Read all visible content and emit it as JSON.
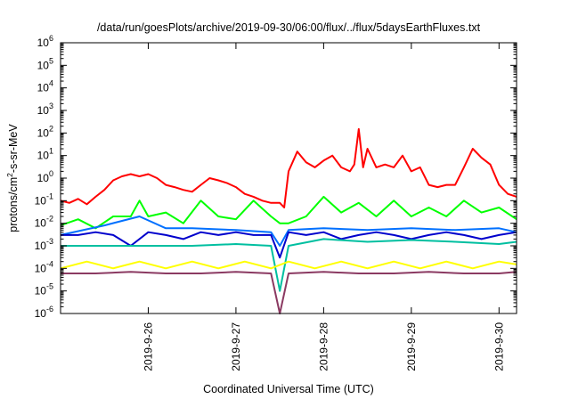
{
  "chart_data": {
    "type": "line",
    "title": "/data/run/goesPlots/archive/2019-09-30/06:00/flux/../flux/5daysEarthFluxes.txt",
    "xlabel": "Coordinated Universal Time (UTC)",
    "ylabel": {
      "prefix": "protons/cm",
      "sup": "2",
      "suffix": "-s-sr-MeV"
    },
    "x_ticks": [
      "2019-9-26",
      "2019-9-27",
      "2019-9-28",
      "2019-9-29",
      "2019-9-30"
    ],
    "x_range_days": [
      0.0,
      5.2
    ],
    "x_tick_positions_days": [
      1.0,
      2.0,
      3.0,
      4.0,
      5.0
    ],
    "y_scale": "log",
    "y_tick_base": "10",
    "y_tick_exponents": [
      "-6",
      "-5",
      "-4",
      "-3",
      "-2",
      "-1",
      "0",
      "1",
      "2",
      "3",
      "4",
      "5",
      "6"
    ],
    "ylim": [
      1e-06,
      1000000.0
    ],
    "grid": false,
    "legend": "none",
    "series": [
      {
        "color": "#ff0000",
        "points": [
          [
            0.0,
            0.1
          ],
          [
            0.1,
            0.08
          ],
          [
            0.2,
            0.12
          ],
          [
            0.3,
            0.07
          ],
          [
            0.4,
            0.15
          ],
          [
            0.5,
            0.3
          ],
          [
            0.6,
            0.8
          ],
          [
            0.7,
            1.2
          ],
          [
            0.8,
            1.5
          ],
          [
            0.9,
            1.2
          ],
          [
            1.0,
            1.5
          ],
          [
            1.1,
            1.0
          ],
          [
            1.2,
            0.5
          ],
          [
            1.3,
            0.4
          ],
          [
            1.4,
            0.3
          ],
          [
            1.5,
            0.25
          ],
          [
            1.6,
            0.5
          ],
          [
            1.7,
            1.0
          ],
          [
            1.8,
            0.8
          ],
          [
            1.9,
            0.6
          ],
          [
            2.0,
            0.4
          ],
          [
            2.1,
            0.2
          ],
          [
            2.2,
            0.15
          ],
          [
            2.3,
            0.1
          ],
          [
            2.4,
            0.08
          ],
          [
            2.5,
            0.08
          ],
          [
            2.55,
            0.05
          ],
          [
            2.6,
            2.0
          ],
          [
            2.7,
            15.0
          ],
          [
            2.8,
            5.0
          ],
          [
            2.9,
            3.0
          ],
          [
            3.0,
            6.0
          ],
          [
            3.1,
            10.0
          ],
          [
            3.2,
            3.0
          ],
          [
            3.3,
            2.0
          ],
          [
            3.35,
            4.0
          ],
          [
            3.4,
            150.0
          ],
          [
            3.45,
            3.0
          ],
          [
            3.5,
            20.0
          ],
          [
            3.6,
            3.0
          ],
          [
            3.7,
            4.0
          ],
          [
            3.8,
            3.0
          ],
          [
            3.9,
            10.0
          ],
          [
            4.0,
            2.0
          ],
          [
            4.1,
            3.0
          ],
          [
            4.2,
            0.5
          ],
          [
            4.3,
            0.4
          ],
          [
            4.4,
            0.5
          ],
          [
            4.5,
            0.5
          ],
          [
            4.6,
            3.0
          ],
          [
            4.7,
            20.0
          ],
          [
            4.8,
            8.0
          ],
          [
            4.9,
            4.0
          ],
          [
            5.0,
            0.5
          ],
          [
            5.1,
            0.2
          ],
          [
            5.2,
            0.15
          ]
        ]
      },
      {
        "color": "#00ff00",
        "points": [
          [
            0.0,
            0.008
          ],
          [
            0.2,
            0.015
          ],
          [
            0.4,
            0.006
          ],
          [
            0.6,
            0.02
          ],
          [
            0.8,
            0.02
          ],
          [
            0.9,
            0.1
          ],
          [
            1.0,
            0.02
          ],
          [
            1.2,
            0.03
          ],
          [
            1.4,
            0.01
          ],
          [
            1.6,
            0.1
          ],
          [
            1.8,
            0.02
          ],
          [
            2.0,
            0.015
          ],
          [
            2.2,
            0.1
          ],
          [
            2.4,
            0.02
          ],
          [
            2.5,
            0.01
          ],
          [
            2.6,
            0.01
          ],
          [
            2.8,
            0.02
          ],
          [
            3.0,
            0.15
          ],
          [
            3.2,
            0.03
          ],
          [
            3.4,
            0.08
          ],
          [
            3.6,
            0.02
          ],
          [
            3.8,
            0.1
          ],
          [
            4.0,
            0.02
          ],
          [
            4.2,
            0.05
          ],
          [
            4.4,
            0.02
          ],
          [
            4.6,
            0.1
          ],
          [
            4.8,
            0.03
          ],
          [
            5.0,
            0.05
          ],
          [
            5.2,
            0.015
          ]
        ]
      },
      {
        "color": "#0070ff",
        "points": [
          [
            0.0,
            0.003
          ],
          [
            0.5,
            0.008
          ],
          [
            0.9,
            0.02
          ],
          [
            1.2,
            0.006
          ],
          [
            1.5,
            0.006
          ],
          [
            2.0,
            0.005
          ],
          [
            2.4,
            0.004
          ],
          [
            2.5,
            0.001
          ],
          [
            2.6,
            0.005
          ],
          [
            3.0,
            0.006
          ],
          [
            3.5,
            0.005
          ],
          [
            4.0,
            0.006
          ],
          [
            4.5,
            0.005
          ],
          [
            5.0,
            0.006
          ],
          [
            5.2,
            0.004
          ]
        ]
      },
      {
        "color": "#0000cc",
        "points": [
          [
            0.0,
            0.003
          ],
          [
            0.2,
            0.003
          ],
          [
            0.4,
            0.004
          ],
          [
            0.6,
            0.003
          ],
          [
            0.8,
            0.001
          ],
          [
            1.0,
            0.004
          ],
          [
            1.2,
            0.003
          ],
          [
            1.4,
            0.002
          ],
          [
            1.6,
            0.004
          ],
          [
            1.8,
            0.003
          ],
          [
            2.0,
            0.004
          ],
          [
            2.2,
            0.003
          ],
          [
            2.4,
            0.003
          ],
          [
            2.5,
            0.0003
          ],
          [
            2.6,
            0.004
          ],
          [
            2.8,
            0.003
          ],
          [
            3.0,
            0.004
          ],
          [
            3.2,
            0.002
          ],
          [
            3.4,
            0.003
          ],
          [
            3.6,
            0.004
          ],
          [
            3.8,
            0.003
          ],
          [
            4.0,
            0.002
          ],
          [
            4.2,
            0.003
          ],
          [
            4.4,
            0.004
          ],
          [
            4.6,
            0.003
          ],
          [
            4.8,
            0.002
          ],
          [
            5.0,
            0.003
          ],
          [
            5.2,
            0.004
          ]
        ]
      },
      {
        "color": "#00bfa0",
        "points": [
          [
            0.0,
            0.001
          ],
          [
            0.5,
            0.001
          ],
          [
            1.0,
            0.001
          ],
          [
            1.5,
            0.001
          ],
          [
            2.0,
            0.0012
          ],
          [
            2.4,
            0.001
          ],
          [
            2.5,
            1e-05
          ],
          [
            2.6,
            0.001
          ],
          [
            3.0,
            0.002
          ],
          [
            3.5,
            0.0015
          ],
          [
            4.0,
            0.0018
          ],
          [
            4.5,
            0.0015
          ],
          [
            5.0,
            0.0012
          ],
          [
            5.2,
            0.0015
          ]
        ]
      },
      {
        "color": "#ffff00",
        "points": [
          [
            0.0,
            0.0001
          ],
          [
            0.3,
            0.0002
          ],
          [
            0.6,
            0.0001
          ],
          [
            0.9,
            0.0002
          ],
          [
            1.2,
            0.0001
          ],
          [
            1.5,
            0.0002
          ],
          [
            1.8,
            0.0001
          ],
          [
            2.1,
            0.0002
          ],
          [
            2.4,
            0.0001
          ],
          [
            2.6,
            0.0002
          ],
          [
            2.9,
            0.0001
          ],
          [
            3.2,
            0.0002
          ],
          [
            3.5,
            0.0001
          ],
          [
            3.8,
            0.0002
          ],
          [
            4.1,
            0.0001
          ],
          [
            4.4,
            0.0002
          ],
          [
            4.7,
            0.0001
          ],
          [
            5.0,
            0.0002
          ],
          [
            5.2,
            0.00015
          ]
        ]
      },
      {
        "color": "#8b3a62",
        "points": [
          [
            0.0,
            6e-05
          ],
          [
            0.4,
            6e-05
          ],
          [
            0.8,
            7e-05
          ],
          [
            1.2,
            6e-05
          ],
          [
            1.6,
            6e-05
          ],
          [
            2.0,
            7e-05
          ],
          [
            2.4,
            6e-05
          ],
          [
            2.5,
            1e-06
          ],
          [
            2.6,
            6e-05
          ],
          [
            3.0,
            7e-05
          ],
          [
            3.4,
            6e-05
          ],
          [
            3.8,
            6e-05
          ],
          [
            4.2,
            7e-05
          ],
          [
            4.6,
            6e-05
          ],
          [
            5.0,
            6e-05
          ],
          [
            5.2,
            7e-05
          ]
        ]
      }
    ]
  }
}
